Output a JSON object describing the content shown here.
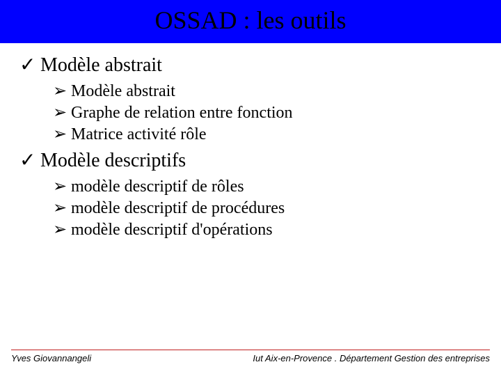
{
  "colors": {
    "title_bg": "#0000ff",
    "title_text": "#000000",
    "body_text": "#000000",
    "footer_rule": "#c02020",
    "background": "#ffffff"
  },
  "title": "OSSAD : les outils",
  "bullets": {
    "check": "✓",
    "arrow": "➢"
  },
  "sections": [
    {
      "label": "Modèle abstrait",
      "items": [
        "Modèle abstrait",
        "Graphe de relation entre fonction",
        "Matrice activité rôle"
      ]
    },
    {
      "label": "Modèle descriptifs",
      "items": [
        " modèle descriptif de rôles",
        " modèle descriptif de procédures",
        " modèle descriptif d'opérations"
      ]
    }
  ],
  "footer": {
    "left": "Yves Giovannangeli",
    "right": "Iut Aix-en-Provence . Département Gestion des entreprises"
  }
}
